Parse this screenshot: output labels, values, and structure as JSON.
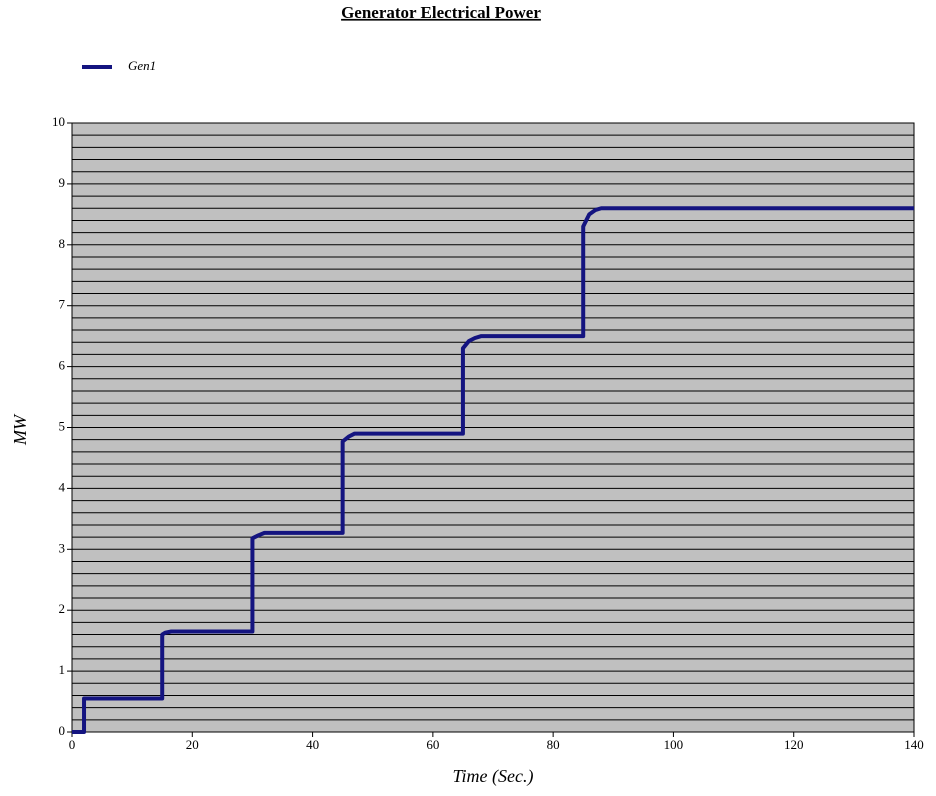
{
  "chart_data": {
    "type": "line",
    "title": "Generator Electrical Power",
    "xlabel": "Time (Sec.)",
    "ylabel": "MW",
    "xlim": [
      0,
      140
    ],
    "ylim": [
      0,
      10
    ],
    "xticks": [
      0,
      20,
      40,
      60,
      80,
      100,
      120,
      140
    ],
    "yticks": [
      0,
      1,
      2,
      3,
      4,
      5,
      6,
      7,
      8,
      9,
      10
    ],
    "ygrid": [
      0,
      0.2,
      0.4,
      0.6,
      0.8,
      1,
      1.2,
      1.4,
      1.6,
      1.8,
      2,
      2.2,
      2.4,
      2.6,
      2.8,
      3,
      3.2,
      3.4,
      3.6,
      3.8,
      4,
      4.2,
      4.4,
      4.6,
      4.8,
      5,
      5.2,
      5.4,
      5.6,
      5.8,
      6,
      6.2,
      6.4,
      6.6,
      6.8,
      7,
      7.2,
      7.4,
      7.6,
      7.8,
      8,
      8.2,
      8.4,
      8.6,
      8.8,
      9,
      9.2,
      9.4,
      9.6,
      9.8,
      10
    ],
    "background": "#c0c0c0",
    "x": [
      0,
      2,
      2,
      15,
      15,
      15.5,
      16.5,
      30,
      30,
      31,
      32,
      45,
      45,
      46,
      47,
      65,
      65,
      66,
      67,
      68,
      85,
      85,
      86,
      87,
      88,
      140
    ],
    "series": [
      {
        "name": "Gen1",
        "color": "#141480",
        "values": [
          0,
          0,
          0.55,
          0.55,
          1.6,
          1.63,
          1.65,
          1.65,
          3.18,
          3.23,
          3.27,
          3.27,
          4.77,
          4.85,
          4.9,
          4.9,
          6.3,
          6.42,
          6.47,
          6.5,
          6.5,
          8.3,
          8.5,
          8.57,
          8.6,
          8.6
        ]
      }
    ]
  }
}
